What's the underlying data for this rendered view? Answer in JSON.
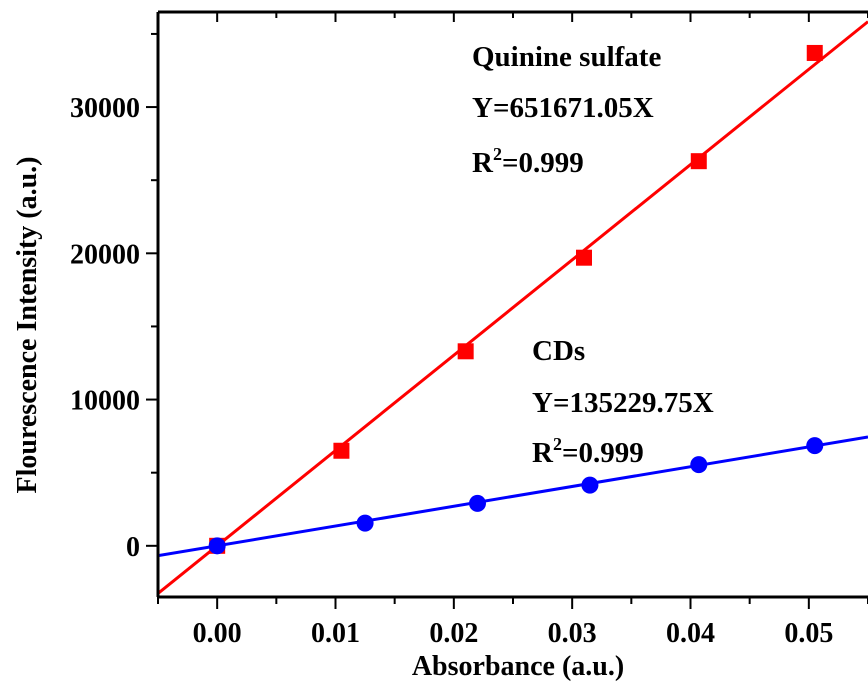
{
  "chart_data": {
    "type": "scatter",
    "title": "",
    "xlabel": "Absorbance (a.u.)",
    "ylabel": "Flourescence Intensity (a.u.)",
    "xlim": [
      -0.005,
      0.055
    ],
    "ylim": [
      -3500,
      36500
    ],
    "x_ticks": [
      0.0,
      0.01,
      0.02,
      0.03,
      0.04,
      0.05
    ],
    "x_tick_labels": [
      "0.00",
      "0.01",
      "0.02",
      "0.03",
      "0.04",
      "0.05"
    ],
    "y_ticks": [
      0,
      10000,
      20000,
      30000
    ],
    "y_tick_labels": [
      "0",
      "10000",
      "20000",
      "30000"
    ],
    "grid": false,
    "series": [
      {
        "name": "Quinine sulfate",
        "color": "#ff0000",
        "marker": "square",
        "x": [
          0.0,
          0.0105,
          0.021,
          0.031,
          0.0407,
          0.0505
        ],
        "y": [
          0,
          6500,
          13300,
          19700,
          26300,
          33700
        ],
        "fit_slope": 651671.05,
        "equation": "Y=651671.05X",
        "r2_prefix": "R",
        "r2_sup": "2",
        "r2_value": "=0.999"
      },
      {
        "name": "CDs",
        "color": "#0000ff",
        "marker": "circle",
        "x": [
          0.0,
          0.0125,
          0.022,
          0.0315,
          0.0407,
          0.0505
        ],
        "y": [
          0,
          1550,
          2900,
          4150,
          5550,
          6850
        ],
        "fit_slope": 135229.75,
        "equation": "Y=135229.75X",
        "r2_prefix": "R",
        "r2_sup": "2",
        "r2_value": "=0.999"
      }
    ]
  }
}
